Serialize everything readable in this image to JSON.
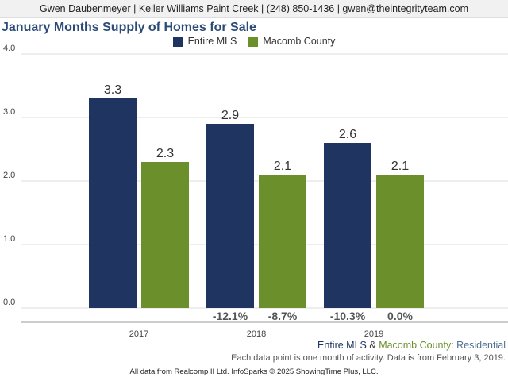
{
  "header": {
    "text": "Gwen Daubenmeyer | Keller Williams Paint Creek | (248) 850-1436 | gwen@theintegrityteam.com"
  },
  "colors": {
    "entire_mls": "#1f3461",
    "macomb": "#6a8f2b",
    "title": "#2b4a78",
    "subtitle_tail": "#4f6f93"
  },
  "chart_data": {
    "type": "bar",
    "title": "January Months Supply of Homes for Sale",
    "categories": [
      "2017",
      "2018",
      "2019"
    ],
    "series": [
      {
        "name": "Entire MLS",
        "values": [
          3.3,
          2.9,
          2.6
        ],
        "labels": [
          "3.3",
          "2.9",
          "2.6"
        ],
        "changes": [
          "",
          "-12.1%",
          "-10.3%"
        ]
      },
      {
        "name": "Macomb County",
        "values": [
          2.3,
          2.1,
          2.1
        ],
        "labels": [
          "2.3",
          "2.1",
          "2.1"
        ],
        "changes": [
          "",
          "-8.7%",
          "0.0%"
        ]
      }
    ],
    "ylim": [
      0,
      4
    ],
    "yticks": [
      "0.0",
      "1.0",
      "2.0",
      "3.0",
      "4.0"
    ],
    "grid": true,
    "legend_position": "top-center"
  },
  "subtitle": {
    "part1": "Entire MLS",
    "amp": " & ",
    "part2": "Macomb County",
    "part3": ": Residential"
  },
  "note": "Each data point is one month of activity. Data is from February 3, 2019.",
  "footer": "All data from Realcomp II Ltd. InfoSparks © 2025 ShowingTime Plus, LLC."
}
